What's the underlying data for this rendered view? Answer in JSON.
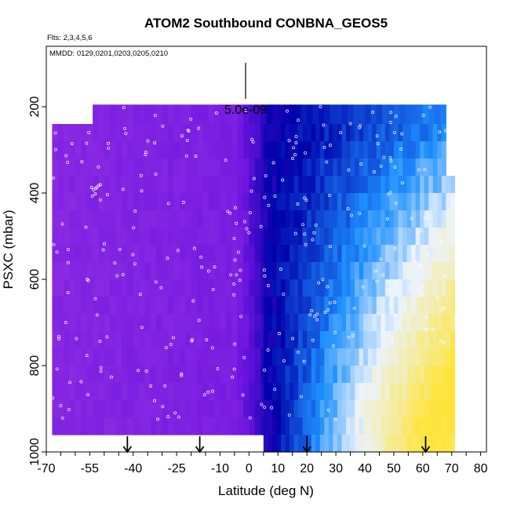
{
  "chart_data": {
    "type": "heatmap",
    "title": "ATOM2 Southbound CONBNA_GEOS5",
    "flights_note": "Flts: 2,3,4,5,6",
    "dates_note": "MMDD: 0129,0201,0203,0205,0210",
    "xlabel": "Latitude (deg N)",
    "ylabel": "PSXC (mbar)",
    "xlim": [
      -70,
      82
    ],
    "ylim": [
      1000,
      60
    ],
    "x_ticks": [
      -70,
      -55,
      -40,
      -25,
      -10,
      0,
      10,
      20,
      30,
      40,
      50,
      60,
      70,
      80
    ],
    "y_ticks": [
      200,
      400,
      600,
      800,
      1000
    ],
    "scale_label": "5.0e-09",
    "arrows_lat": [
      -42,
      -17,
      20,
      61
    ],
    "colors": {
      "low": "#8a2be2",
      "mid_low": "#7a1ee0",
      "mid": "#0000a8",
      "mid_high": "#1e90ff",
      "pale": "#eef4ff",
      "high": "#ffe64a"
    },
    "description": "Curtain of CONBNA tracer vs latitude and pressure: uniform low values (purple) south of ~5N, rising sharply northward to dark blue (~5-20N) then light blue/white and yellow maxima (45-70N) in the lower troposphere below ~700 mbar."
  }
}
